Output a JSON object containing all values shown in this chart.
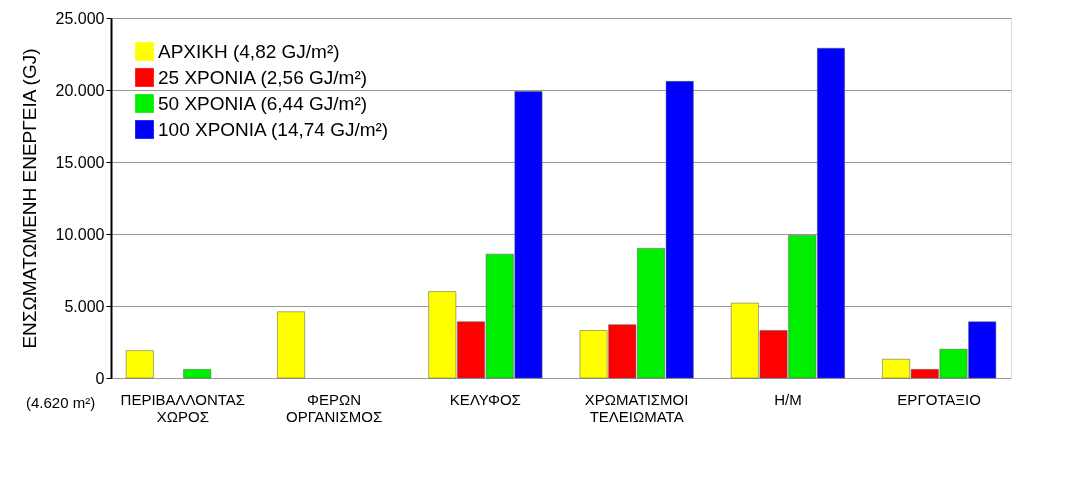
{
  "chart_data": {
    "type": "bar",
    "ylabel": "ΕΝΣΩΜΑΤΩΜΕΝΗ ΕΝΕΡΓΕΙΑ  (GJ)",
    "categories": [
      "ΠΕΡΙΒΑΛΛΟΝΤΑΣ ΧΩΡΟΣ",
      "ΦΕΡΩΝ ΟΡΓΑΝΙΣΜΟΣ",
      "ΚΕΛΥΦΟΣ",
      "ΧΡΩΜΑΤΙΣΜΟΙ ΤΕΛΕΙΩΜΑΤΑ",
      "Η/Μ",
      "ΕΡΓΟΤΑΞΙΟ"
    ],
    "series": [
      {
        "name": "ΑΡΧΙΚΗ (4,82 GJ/m²)",
        "color": "#ffff00",
        "values": [
          1900,
          4600,
          6000,
          3300,
          5200,
          1300
        ]
      },
      {
        "name": "25 ΧΡΟΝΙΑ (2,56 GJ/m²)",
        "color": "#ff0000",
        "values": [
          null,
          null,
          3900,
          3700,
          3300,
          600
        ]
      },
      {
        "name": "50 ΧΡΟΝΙΑ (6,44 GJ/m²)",
        "color": "#00ee00",
        "values": [
          600,
          null,
          8600,
          9000,
          9900,
          2000
        ]
      },
      {
        "name": "100 ΧΡΟΝΙΑ (14,74 GJ/m²)",
        "color": "#0000ff",
        "values": [
          null,
          null,
          19900,
          20600,
          22900,
          3900
        ]
      }
    ],
    "ylim": [
      0,
      25000
    ],
    "yticks": [
      {
        "value": 0,
        "label": "0"
      },
      {
        "value": 5000,
        "label": "5.000"
      },
      {
        "value": 10000,
        "label": "10.000"
      },
      {
        "value": 15000,
        "label": "15.000"
      },
      {
        "value": 20000,
        "label": "20.000"
      },
      {
        "value": 25000,
        "label": "25.000"
      }
    ],
    "grid": "y",
    "legend": "top left",
    "annotations": [
      "(4.620 m²)"
    ]
  }
}
